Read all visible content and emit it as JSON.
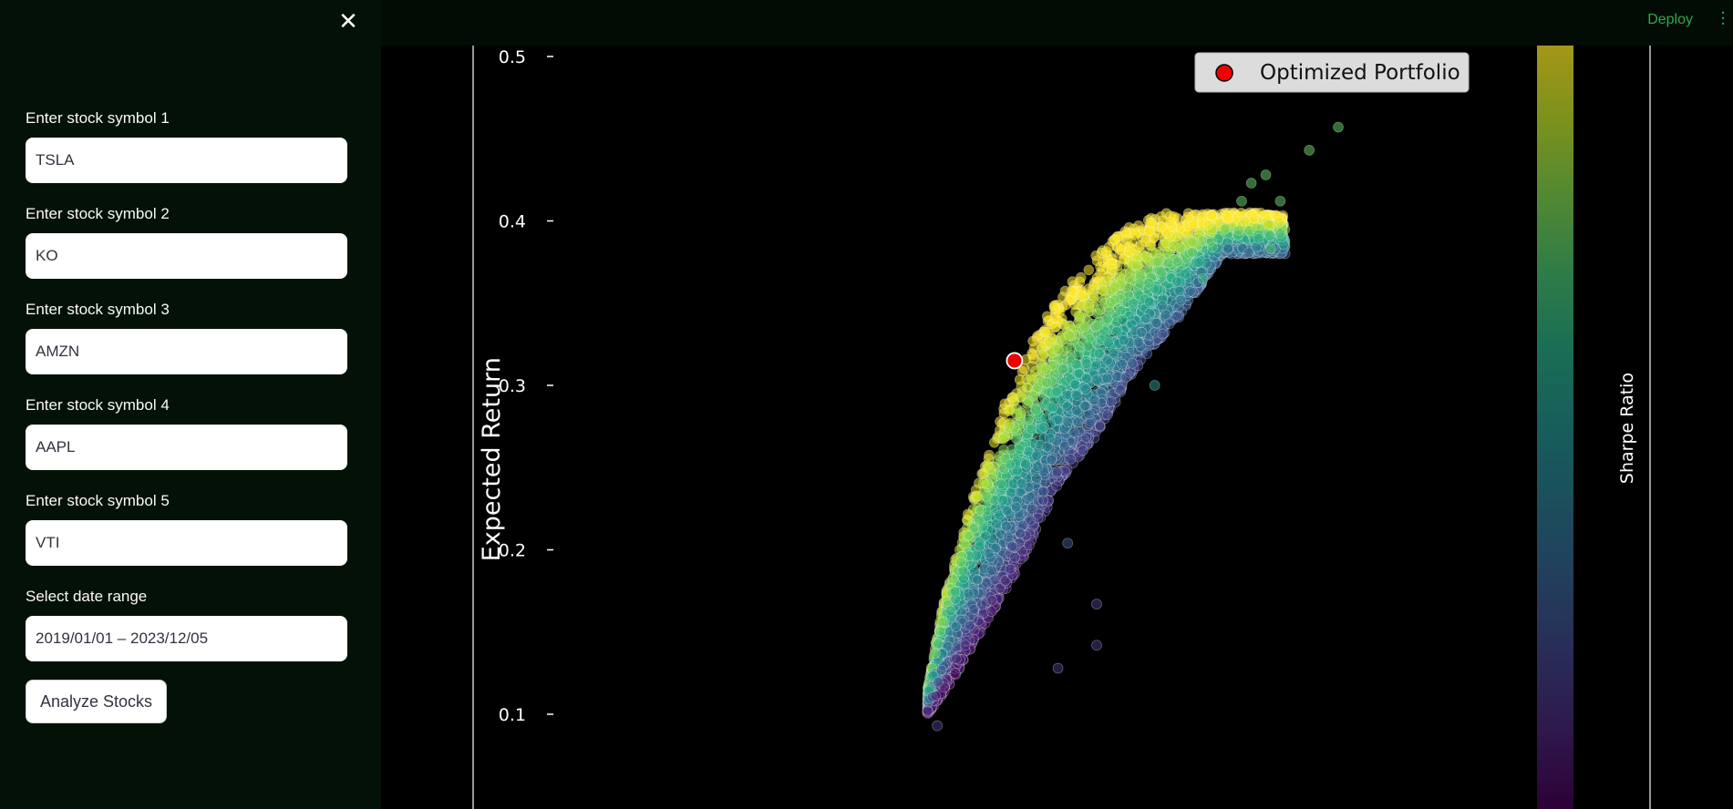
{
  "sidebar": {
    "close_icon": "close-icon",
    "fields": [
      {
        "label": "Enter stock symbol 1",
        "value": "TSLA"
      },
      {
        "label": "Enter stock symbol 2",
        "value": "KO"
      },
      {
        "label": "Enter stock symbol 3",
        "value": "AMZN"
      },
      {
        "label": "Enter stock symbol 4",
        "value": "AAPL"
      },
      {
        "label": "Enter stock symbol 5",
        "value": "VTI"
      }
    ],
    "date_range": {
      "label": "Select date range",
      "value": "2019/01/01 – 2023/12/05"
    },
    "analyze_label": "Analyze Stocks"
  },
  "header": {
    "deploy_label": "Deploy",
    "menu_icon": "vertical-dots-icon"
  },
  "chart_data": {
    "type": "scatter",
    "title": "",
    "xlabel": "",
    "ylabel": "Expected Return",
    "colorbar_label": "Sharpe Ratio",
    "colormap": "viridis",
    "y_ticks": [
      0.1,
      0.2,
      0.3,
      0.4,
      0.5
    ],
    "ylim": [
      0.075,
      0.505
    ],
    "xlim": [
      0.0,
      1.0
    ],
    "legend": {
      "label": "Optimized Portfolio",
      "placement": "top-right"
    },
    "optimized_portfolio": {
      "x": 0.33,
      "y": 0.315,
      "color": "#ee0000"
    },
    "frontier": [
      [
        0.15,
        0.115
      ],
      [
        0.17,
        0.15
      ],
      [
        0.2,
        0.19
      ],
      [
        0.24,
        0.23
      ],
      [
        0.28,
        0.265
      ],
      [
        0.33,
        0.305
      ],
      [
        0.38,
        0.335
      ],
      [
        0.44,
        0.36
      ],
      [
        0.5,
        0.38
      ],
      [
        0.56,
        0.395
      ],
      [
        0.63,
        0.405
      ]
    ],
    "envelope_bottom": [
      [
        0.15,
        0.1
      ],
      [
        0.2,
        0.12
      ],
      [
        0.26,
        0.15
      ],
      [
        0.3,
        0.17
      ],
      [
        0.36,
        0.2
      ],
      [
        0.42,
        0.24
      ],
      [
        0.5,
        0.27
      ],
      [
        0.58,
        0.31
      ],
      [
        0.68,
        0.345
      ],
      [
        0.76,
        0.38
      ]
    ],
    "outliers": [
      [
        0.17,
        0.093
      ],
      [
        0.42,
        0.128
      ],
      [
        0.5,
        0.142
      ],
      [
        0.5,
        0.167
      ],
      [
        0.44,
        0.204
      ],
      [
        0.62,
        0.3
      ],
      [
        0.74,
        0.384
      ],
      [
        0.8,
        0.412
      ],
      [
        0.82,
        0.423
      ],
      [
        0.85,
        0.428
      ],
      [
        0.88,
        0.412
      ],
      [
        0.94,
        0.443
      ],
      [
        1.0,
        0.457
      ],
      [
        0.72,
        0.365
      ],
      [
        0.86,
        0.383
      ]
    ],
    "scatter_count": 4000
  },
  "colors": {
    "sidebar_bg": "#031106",
    "deploy": "#2fa84f",
    "chart_bg": "#000000"
  }
}
